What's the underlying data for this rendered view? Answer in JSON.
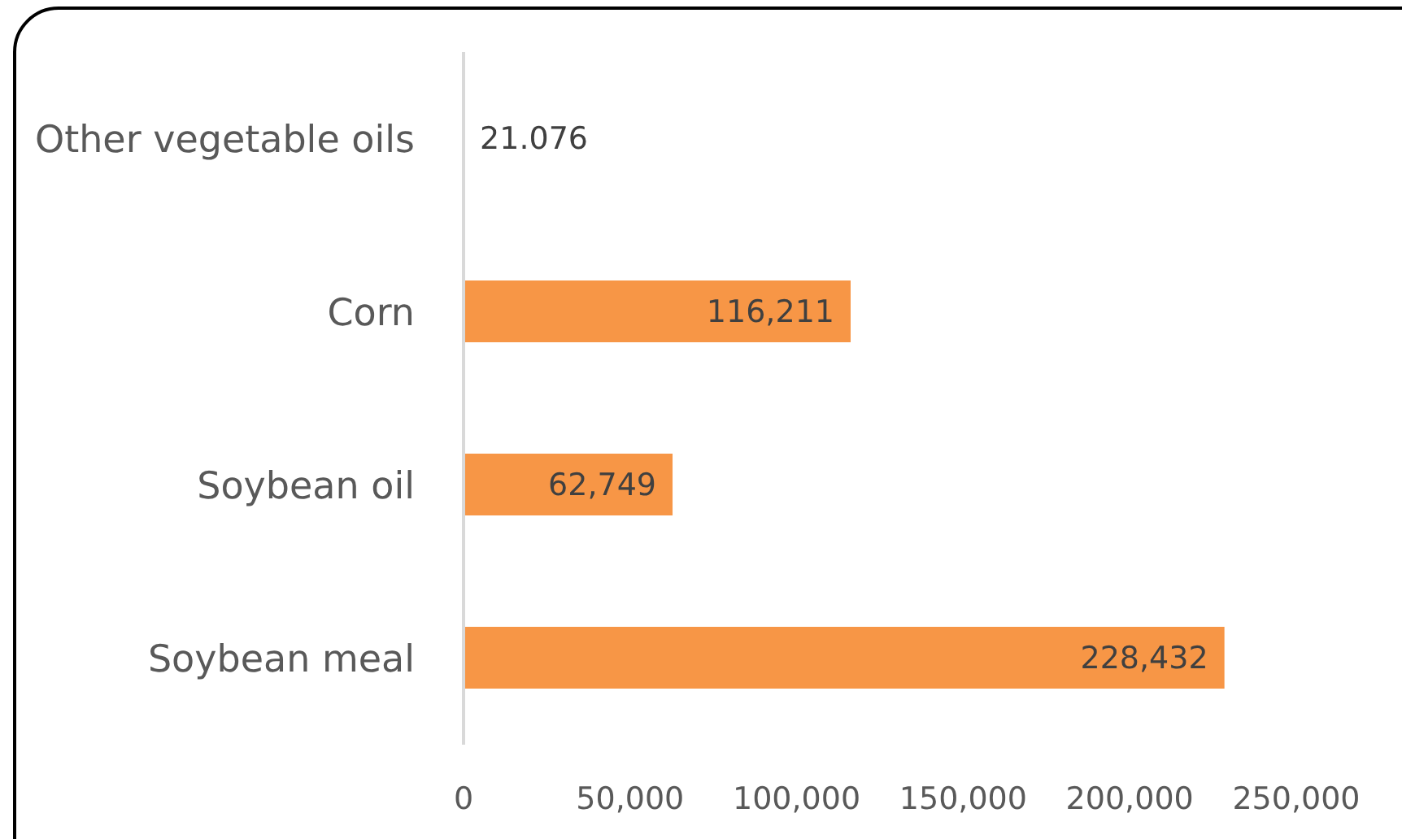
{
  "chart_data": {
    "type": "bar",
    "orientation": "horizontal",
    "categories": [
      "Other vegetable oils",
      "Corn",
      "Soybean oil",
      "Soybean meal"
    ],
    "values": [
      21.076,
      116211,
      62749,
      228432
    ],
    "value_labels": [
      "21.076",
      "116,211",
      "62,749",
      "228,432"
    ],
    "color": "#f79646",
    "xlim": [
      0,
      250000
    ],
    "xticks": [
      0,
      {
        "value": 50000,
        "label": "50,000"
      },
      {
        "value": 100000,
        "label": "100,000"
      },
      {
        "value": 150000,
        "label": "150,000"
      },
      {
        "value": 200000,
        "label": "200,000"
      },
      {
        "value": 250000,
        "label": "250,000"
      }
    ],
    "grid": false,
    "legend": false
  }
}
